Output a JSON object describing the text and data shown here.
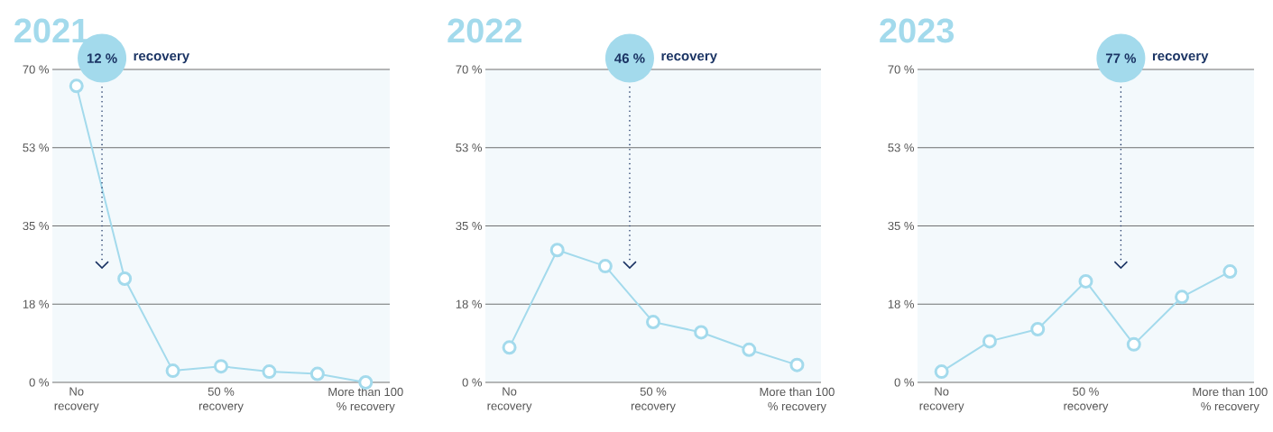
{
  "chart_data": [
    {
      "type": "line",
      "title": "2021",
      "categories": [
        "No recovery",
        null,
        null,
        "50 % recovery",
        null,
        null,
        "More than 100 % recovery"
      ],
      "values": [
        66.3,
        23.2,
        2.6,
        3.6,
        2.4,
        1.9,
        0
      ],
      "color": "#a3daec",
      "ylim": [
        0,
        70
      ],
      "yticks": [
        {
          "value": 0,
          "label": "0 %"
        },
        {
          "value": 17.5,
          "label": "18 %"
        },
        {
          "value": 35,
          "label": "35 %"
        },
        {
          "value": 52.5,
          "label": "53 %"
        },
        {
          "value": 70,
          "label": "70 %"
        }
      ],
      "grid": "y",
      "marker": "circle",
      "annotations": [
        "12 %",
        "recovery"
      ]
    },
    {
      "type": "line",
      "title": "2022",
      "categories": [
        "No recovery",
        null,
        null,
        "50 % recovery",
        null,
        null,
        "More than 100 % recovery"
      ],
      "values": [
        7.8,
        29.6,
        26.0,
        13.5,
        11.2,
        7.3,
        3.9
      ],
      "color": "#a3daec",
      "ylim": [
        0,
        70
      ],
      "yticks": [
        {
          "value": 0,
          "label": "0 %"
        },
        {
          "value": 17.5,
          "label": "18 %"
        },
        {
          "value": 35,
          "label": "35 %"
        },
        {
          "value": 52.5,
          "label": "53 %"
        },
        {
          "value": 70,
          "label": "70 %"
        }
      ],
      "grid": "y",
      "marker": "circle",
      "annotations": [
        "46 %",
        "recovery"
      ]
    },
    {
      "type": "line",
      "title": "2023",
      "categories": [
        "No recovery",
        null,
        null,
        "50 % recovery",
        null,
        null,
        "More than 100 % recovery"
      ],
      "values": [
        2.4,
        9.2,
        11.9,
        22.6,
        8.5,
        19.1,
        24.8
      ],
      "color": "#a3daec",
      "ylim": [
        0,
        70
      ],
      "yticks": [
        {
          "value": 0,
          "label": "0 %"
        },
        {
          "value": 17.5,
          "label": "18 %"
        },
        {
          "value": 35,
          "label": "35 %"
        },
        {
          "value": 52.5,
          "label": "53 %"
        },
        {
          "value": 70,
          "label": "70 %"
        }
      ],
      "grid": "y",
      "marker": "circle",
      "annotations": [
        "77 %",
        "recovery"
      ]
    }
  ]
}
